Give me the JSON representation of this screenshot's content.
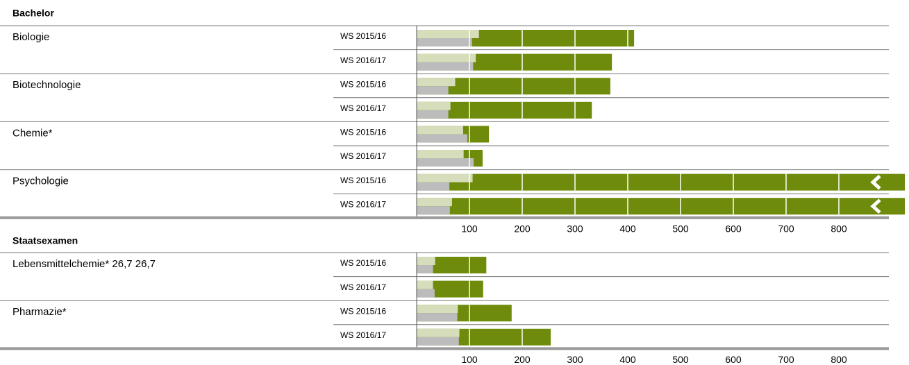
{
  "chart_data": [
    {
      "type": "bullet",
      "title": "Bachelor",
      "colors": [
        "#d6ddbb",
        "#bcbcbc",
        "#6e8b0c"
      ],
      "xlim": [
        0,
        925
      ],
      "xticks": [
        100,
        200,
        300,
        400,
        500,
        600,
        700,
        800
      ],
      "groups": [
        {
          "name": "Biologie",
          "rows": [
            {
              "period": "WS 2015/16",
              "values": [
                118,
                105,
                412
              ]
            },
            {
              "period": "WS 2016/17",
              "values": [
                112,
                107,
                370
              ]
            }
          ]
        },
        {
          "name": "Biotechnologie",
          "rows": [
            {
              "period": "WS 2015/16",
              "values": [
                73,
                60,
                367
              ]
            },
            {
              "period": "WS 2016/17",
              "values": [
                64,
                60,
                332
              ]
            }
          ]
        },
        {
          "name": "Chemie*",
          "rows": [
            {
              "period": "WS 2015/16",
              "values": [
                88,
                96,
                137
              ]
            },
            {
              "period": "WS 2016/17",
              "values": [
                89,
                108,
                125
              ]
            }
          ]
        },
        {
          "name": "Psychologie",
          "rows": [
            {
              "period": "WS 2015/16",
              "values": [
                106,
                62,
                1200
              ]
            },
            {
              "period": "WS 2016/17",
              "values": [
                67,
                63,
                1200
              ]
            }
          ]
        }
      ]
    },
    {
      "type": "bullet",
      "title": "Staatsexamen",
      "colors": [
        "#d6ddbb",
        "#bcbcbc",
        "#6e8b0c"
      ],
      "xlim": [
        0,
        925
      ],
      "xticks": [
        100,
        200,
        300,
        400,
        500,
        600,
        700,
        800
      ],
      "groups": [
        {
          "name": "Lebensmittelchemie* 26,7 26,7",
          "rows": [
            {
              "period": "WS 2015/16",
              "values": [
                35,
                31,
                132
              ]
            },
            {
              "period": "WS 2016/17",
              "values": [
                31,
                34,
                126
              ]
            }
          ]
        },
        {
          "name": "Pharmazie*",
          "rows": [
            {
              "period": "WS 2015/16",
              "values": [
                78,
                77,
                180
              ]
            },
            {
              "period": "WS 2016/17",
              "values": [
                81,
                80,
                254
              ]
            }
          ]
        }
      ]
    }
  ]
}
